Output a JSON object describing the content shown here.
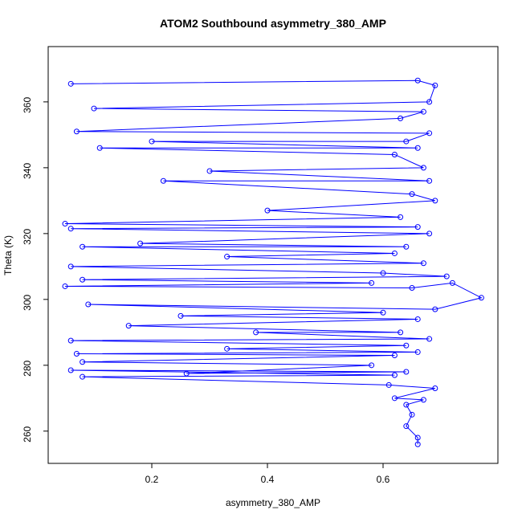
{
  "chart_data": {
    "type": "line",
    "title": "ATOM2 Southbound asymmetry_380_AMP",
    "x_label": "asymmetry_380_AMP",
    "y_label": "Theta (K)",
    "color": "#0000ff",
    "markers": true,
    "xlim": [
      0.0208,
      0.7986
    ],
    "ylim": [
      250.2,
      376.8
    ],
    "xticks": [
      0.2,
      0.4,
      0.6
    ],
    "yticks": [
      260,
      280,
      300,
      320,
      340,
      360
    ],
    "series": [
      {
        "name": "asymmetry_380_AMP",
        "color": "#0000ff",
        "x": [
          0.06,
          0.66,
          0.69,
          0.68,
          0.1,
          0.67,
          0.63,
          0.07,
          0.68,
          0.64,
          0.2,
          0.66,
          0.11,
          0.62,
          0.67,
          0.3,
          0.68,
          0.22,
          0.65,
          0.69,
          0.4,
          0.63,
          0.05,
          0.66,
          0.06,
          0.68,
          0.18,
          0.64,
          0.08,
          0.62,
          0.33,
          0.67,
          0.06,
          0.6,
          0.71,
          0.08,
          0.58,
          0.05,
          0.65,
          0.72,
          0.77,
          0.69,
          0.09,
          0.6,
          0.25,
          0.66,
          0.16,
          0.63,
          0.38,
          0.68,
          0.06,
          0.64,
          0.33,
          0.66,
          0.07,
          0.62,
          0.08,
          0.58,
          0.26,
          0.64,
          0.06,
          0.62,
          0.08,
          0.61,
          0.69,
          0.62,
          0.67,
          0.64,
          0.65,
          0.64,
          0.66,
          0.66
        ],
        "values": [
          365.5,
          366.5,
          365,
          360,
          358,
          357,
          355,
          351,
          350.5,
          348,
          348,
          346,
          346,
          344,
          340,
          339,
          336,
          336,
          332,
          330,
          327,
          325,
          323,
          322,
          321.5,
          320,
          317,
          316,
          316,
          314,
          313,
          311,
          310,
          308,
          307,
          306,
          305,
          304,
          303.5,
          305,
          300.5,
          297,
          298.5,
          296,
          295,
          294,
          292,
          290,
          290,
          288,
          287.5,
          286,
          285,
          284,
          283.5,
          283,
          281,
          280,
          277.5,
          278,
          278.5,
          277,
          276.5,
          274,
          273,
          270,
          269.5,
          268,
          265,
          261.5,
          258,
          256
        ]
      }
    ]
  }
}
